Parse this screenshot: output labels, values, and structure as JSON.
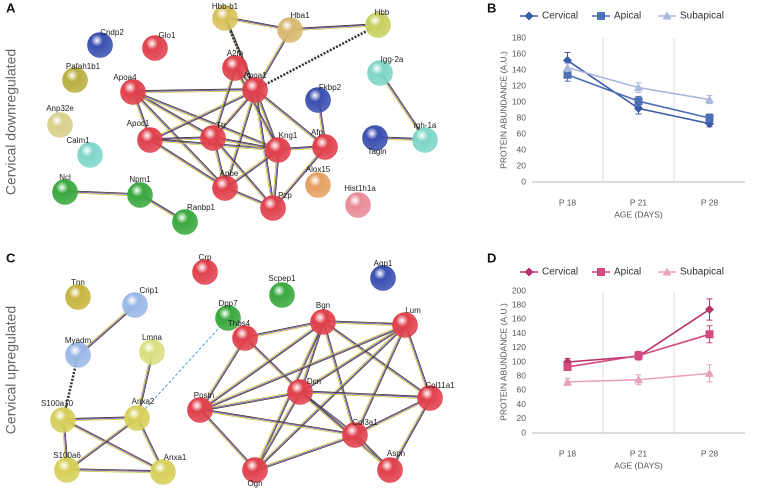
{
  "panel_labels": [
    "A",
    "B",
    "C",
    "D"
  ],
  "network_a": {
    "side_label": "Cervical downregulated",
    "nodes": [
      "Cndp2",
      "Glo1",
      "Hbb-b1",
      "Hba1",
      "Hbb",
      "Igg-2a",
      "Pafah1b1",
      "A2m",
      "Apoa4",
      "Apoa1",
      "Fkbp2",
      "Anp32e",
      "Apoc1",
      "Ttr",
      "Kng1",
      "Afp",
      "Tagln",
      "Igh-1a",
      "Calm1",
      "Apoe",
      "Alox15",
      "Ncl",
      "Npm1",
      "Pzp",
      "Hist1h1a",
      "Ranbp1"
    ]
  },
  "network_c": {
    "side_label": "Cervical upregulated",
    "nodes": [
      "Crp",
      "Aqp1",
      "Tnn",
      "Crip1",
      "Scpep1",
      "Dpp7",
      "Bgn",
      "Lum",
      "Lmna",
      "Myadm",
      "Thbs4",
      "Dcn",
      "Col11a1",
      "S100a10",
      "Anxa2",
      "Postn",
      "Col3a1",
      "S100a6",
      "Anxa1",
      "Ogn",
      "Aspn"
    ]
  },
  "chart_data": [
    {
      "type": "line",
      "categories": [
        "P 18",
        "P 21",
        "P 28"
      ],
      "x_label": "AGE (DAYS)",
      "y_label": "PROTEIN ABUNDANCE (A.U.)",
      "ylim": [
        0,
        180
      ],
      "yticks": [
        0,
        20,
        40,
        60,
        80,
        100,
        120,
        140,
        160,
        180
      ],
      "grid": false,
      "legend": "top",
      "series": [
        {
          "name": "Cervical",
          "color": "#3b5ba8",
          "marker": "diamond",
          "values": [
            152,
            92,
            73
          ],
          "errors": [
            10,
            7,
            4
          ]
        },
        {
          "name": "Apical",
          "color": "#4d6fb4",
          "marker": "square",
          "values": [
            134,
            101,
            80
          ],
          "errors": [
            8,
            6,
            5
          ]
        },
        {
          "name": "Subapical",
          "color": "#a9b8dc",
          "marker": "triangle",
          "values": [
            143,
            118,
            103
          ],
          "errors": [
            5,
            6,
            5
          ]
        }
      ]
    },
    {
      "type": "line",
      "categories": [
        "P 18",
        "P 21",
        "P 28"
      ],
      "x_label": "AGE (DAYS)",
      "y_label": "PROTEIN ABUNDANCE (A.U.)",
      "ylim": [
        0,
        200
      ],
      "yticks": [
        0,
        20,
        40,
        60,
        80,
        100,
        120,
        140,
        160,
        180,
        200
      ],
      "grid": false,
      "legend": "top",
      "series": [
        {
          "name": "Cervical",
          "color": "#b8336a",
          "marker": "diamond",
          "values": [
            100,
            108,
            174
          ],
          "errors": [
            5,
            5,
            15
          ]
        },
        {
          "name": "Apical",
          "color": "#d24a80",
          "marker": "square",
          "values": [
            93,
            109,
            139
          ],
          "errors": [
            5,
            6,
            12
          ]
        },
        {
          "name": "Subapical",
          "color": "#e8a3b8",
          "marker": "triangle",
          "values": [
            72,
            75,
            84
          ],
          "errors": [
            5,
            7,
            12
          ]
        }
      ]
    }
  ]
}
